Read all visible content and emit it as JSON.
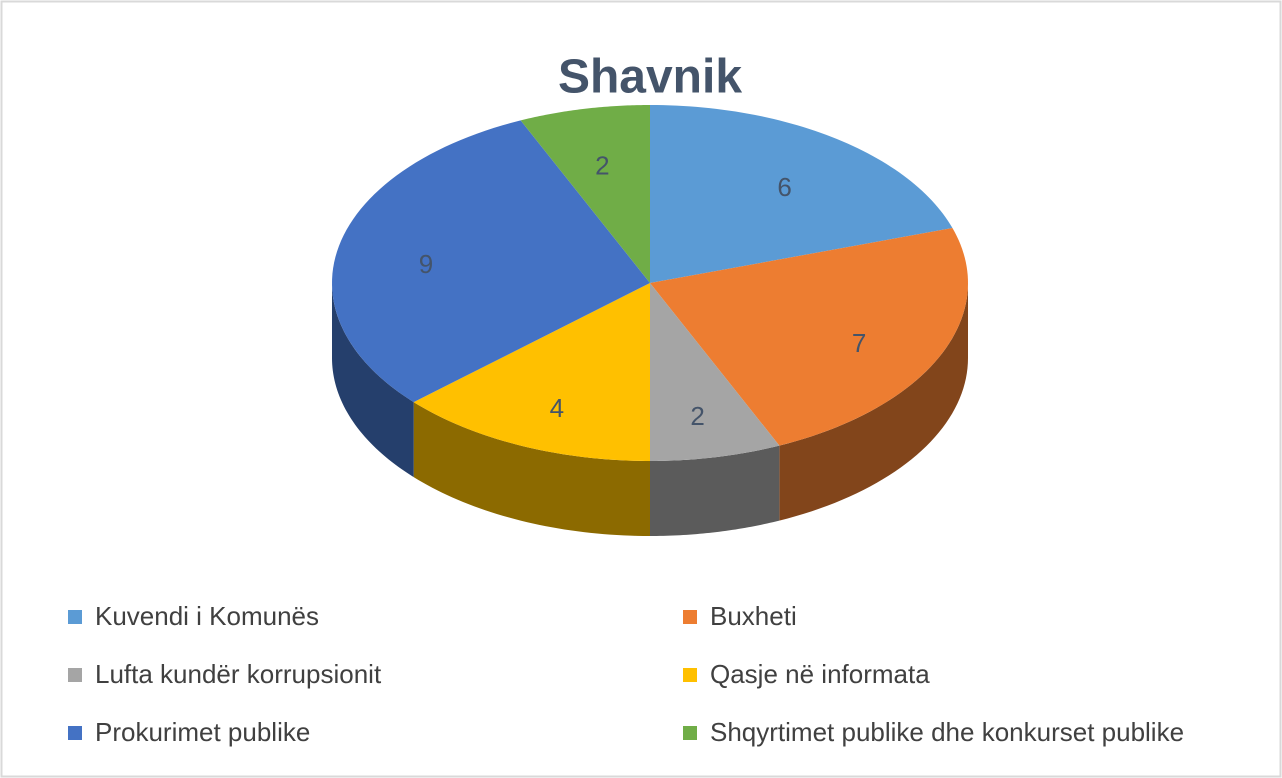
{
  "chart_data": {
    "type": "pie",
    "title": "Shavnik",
    "categories": [
      "Kuvendi i Komunës",
      "Buxheti",
      "Lufta kundër korrupsionit",
      "Qasje në informata",
      "Prokurimet publike",
      "Shqyrtimet publike dhe konkurset publike"
    ],
    "values": [
      6,
      7,
      2,
      4,
      9,
      2
    ],
    "colors": [
      "#5b9bd5",
      "#ed7d31",
      "#a5a5a5",
      "#ffc000",
      "#4472c4",
      "#70ad47"
    ],
    "legend": "bottom"
  }
}
